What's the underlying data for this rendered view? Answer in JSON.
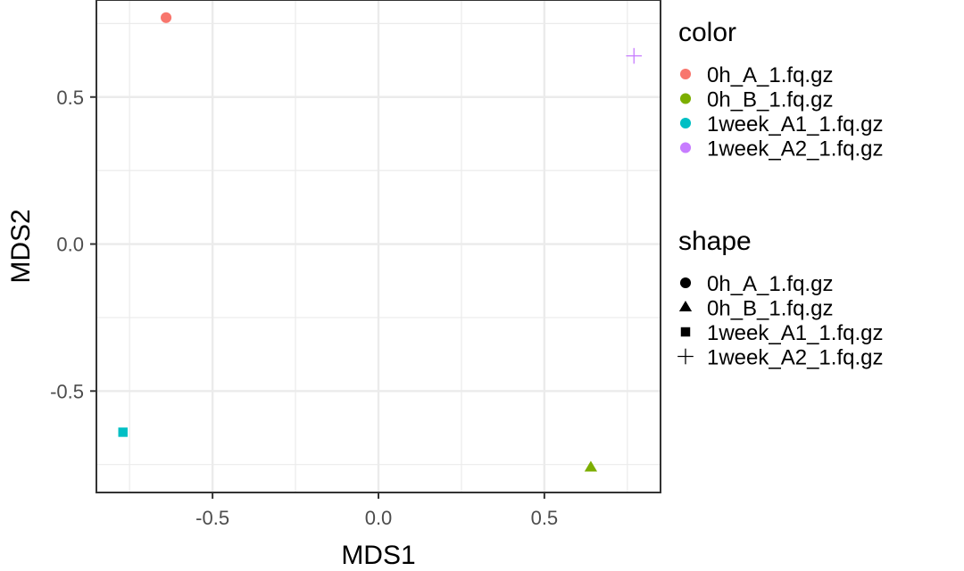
{
  "chart_data": {
    "type": "scatter",
    "title": "",
    "xlabel": "MDS1",
    "ylabel": "MDS2",
    "xlim": [
      -0.85,
      0.85
    ],
    "ylim": [
      -0.845,
      0.83
    ],
    "x_ticks": [
      -0.5,
      0.0,
      0.5
    ],
    "x_tick_labels": [
      "-0.5",
      "0.0",
      "0.5"
    ],
    "y_ticks": [
      0.5,
      0.0,
      -0.5
    ],
    "y_tick_labels": [
      "0.5",
      "0.0",
      "-0.5"
    ],
    "grid": true,
    "legend_placement": "right",
    "legends": [
      {
        "title": "color",
        "aesthetic": "color"
      },
      {
        "title": "shape",
        "aesthetic": "shape"
      }
    ],
    "series": [
      {
        "name": "0h_A_1.fq.gz",
        "x": -0.64,
        "y": 0.77,
        "color": "#F8766D",
        "shape": "circle"
      },
      {
        "name": "0h_B_1.fq.gz",
        "x": 0.64,
        "y": -0.76,
        "color": "#7CAE00",
        "shape": "triangle"
      },
      {
        "name": "1week_A1_1.fq.gz",
        "x": -0.77,
        "y": -0.64,
        "color": "#00BFC4",
        "shape": "square"
      },
      {
        "name": "1week_A2_1.fq.gz",
        "x": 0.77,
        "y": 0.64,
        "color": "#C77CFF",
        "shape": "plus"
      }
    ]
  }
}
